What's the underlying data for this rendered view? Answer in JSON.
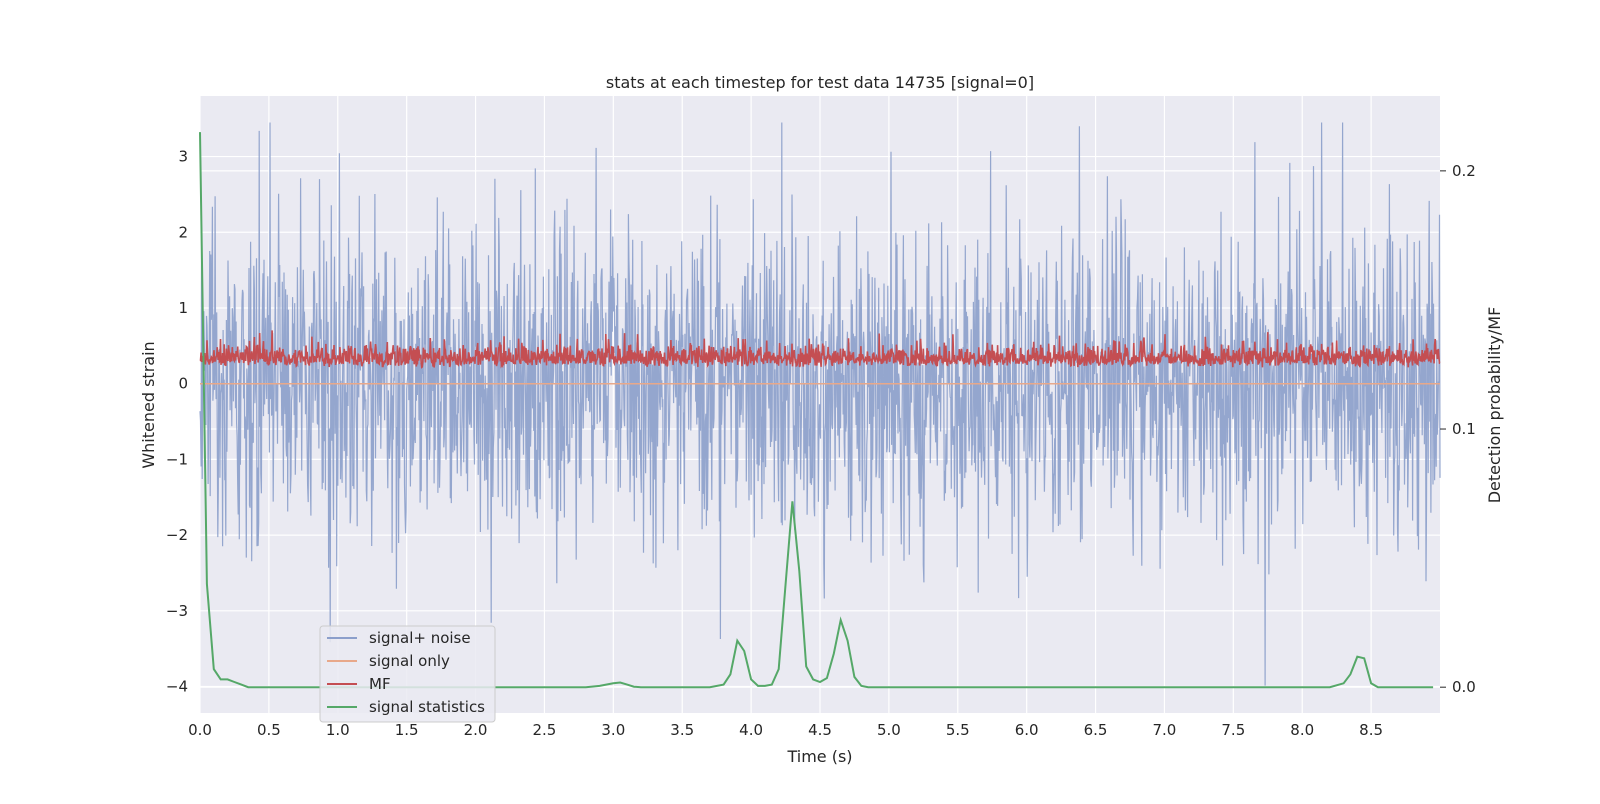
{
  "chart_data": {
    "type": "line",
    "title": "stats at each timestep for test data 14735 [signal=0]",
    "xlabel": "Time (s)",
    "ylabel": "Whitened strain",
    "y2label": "Detection probability/MF",
    "xlim": [
      0.0,
      9.0
    ],
    "ylim": [
      -4.35,
      3.8
    ],
    "y2lim": [
      -0.01,
      0.229
    ],
    "x_ticks": [
      0.0,
      0.5,
      1.0,
      1.5,
      2.0,
      2.5,
      3.0,
      3.5,
      4.0,
      4.5,
      5.0,
      5.5,
      6.0,
      6.5,
      7.0,
      7.5,
      8.0,
      8.5
    ],
    "x_tick_labels": [
      "0.0",
      "0.5",
      "1.0",
      "1.5",
      "2.0",
      "2.5",
      "3.0",
      "3.5",
      "4.0",
      "4.5",
      "5.0",
      "5.5",
      "6.0",
      "6.5",
      "7.0",
      "7.5",
      "8.0",
      "8.5"
    ],
    "y_ticks": [
      3,
      2,
      1,
      0,
      -1,
      -2,
      -3,
      -4
    ],
    "y_tick_labels": [
      "3",
      "2",
      "1",
      "0",
      "−1",
      "−2",
      "−3",
      "−4"
    ],
    "y2_ticks": [
      0.2,
      0.1,
      0.0
    ],
    "y2_tick_labels": [
      "0.2",
      "0.1",
      "0.0"
    ],
    "grid": true,
    "legend_position": "bottom-left",
    "colors": {
      "plot_bg": "#eaeaf2",
      "grid": "#ffffff",
      "noise": "#8c9fcb",
      "signal": "#e8a88a",
      "mf": "#c44e52",
      "stats": "#55a868"
    },
    "series": [
      {
        "name": "signal+ noise",
        "axis": "left",
        "color": "#8c9fcb",
        "description": "whitened noisy strain, sampled densely; values range roughly -4 to 3.5",
        "sample_rate": 256,
        "amplitude": 1.0,
        "seed": 14735
      },
      {
        "name": "signal only",
        "axis": "left",
        "color": "#e8a88a",
        "description": "no injected signal (signal=0)",
        "x": [
          0.0,
          9.0
        ],
        "values": [
          0.0,
          0.0
        ]
      },
      {
        "name": "MF",
        "axis": "left",
        "color": "#c44e52",
        "description": "matched-filter output, noisy around 0.25, range about 0 to 0.9",
        "sample_rate": 256,
        "seed": 4242
      },
      {
        "name": "signal statistics",
        "axis": "right",
        "color": "#55a868",
        "x": [
          0.0,
          0.05,
          0.1,
          0.15,
          0.2,
          0.25,
          0.3,
          0.35,
          0.4,
          0.5,
          0.6,
          0.7,
          0.8,
          0.9,
          1.0,
          1.5,
          2.0,
          2.5,
          2.8,
          2.9,
          3.0,
          3.05,
          3.1,
          3.15,
          3.2,
          3.3,
          3.5,
          3.7,
          3.8,
          3.85,
          3.9,
          3.95,
          4.0,
          4.05,
          4.1,
          4.15,
          4.2,
          4.25,
          4.3,
          4.35,
          4.4,
          4.45,
          4.5,
          4.55,
          4.6,
          4.65,
          4.7,
          4.75,
          4.8,
          4.85,
          4.9,
          4.95,
          5.0,
          5.05,
          5.1,
          5.2,
          5.5,
          6.0,
          7.0,
          8.0,
          8.2,
          8.3,
          8.35,
          8.4,
          8.45,
          8.5,
          8.55,
          8.6,
          8.7,
          8.8,
          8.9,
          8.95
        ],
        "values": [
          0.215,
          0.04,
          0.007,
          0.003,
          0.003,
          0.002,
          0.001,
          0.0,
          0.0,
          0.0,
          0.0,
          0.0,
          0.0,
          0.0,
          0.0,
          0.0,
          0.0,
          0.0,
          0.0,
          0.0005,
          0.0015,
          0.0018,
          0.001,
          0.0002,
          0.0,
          0.0,
          0.0,
          0.0,
          0.001,
          0.005,
          0.018,
          0.014,
          0.003,
          0.0005,
          0.0005,
          0.001,
          0.007,
          0.04,
          0.072,
          0.045,
          0.008,
          0.003,
          0.002,
          0.0035,
          0.013,
          0.026,
          0.018,
          0.004,
          0.0005,
          0.0,
          0.0,
          0.0,
          0.0,
          0.0,
          0.0,
          0.0,
          0.0,
          0.0,
          0.0,
          0.0,
          0.0,
          0.0015,
          0.005,
          0.0118,
          0.0112,
          0.0015,
          0.0,
          0.0,
          0.0,
          0.0,
          0.0,
          0.0
        ]
      }
    ],
    "legend": [
      "signal+ noise",
      "signal only",
      "MF",
      "signal statistics"
    ]
  }
}
